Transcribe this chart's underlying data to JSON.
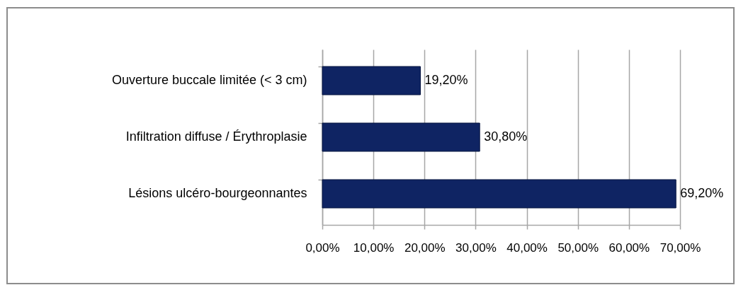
{
  "chart_data": {
    "type": "bar",
    "orientation": "horizontal",
    "categories": [
      "Ouverture buccale limitée (< 3 cm)",
      "Infiltration diffuse / Érythroplasie",
      "Lésions ulcéro-bourgeonnantes"
    ],
    "values": [
      19.2,
      30.8,
      69.2
    ],
    "color": "#0f2463",
    "value_labels": [
      "19,20%",
      "30,80%",
      "69,20%"
    ],
    "xlim": [
      0,
      70
    ],
    "xticks": [
      {
        "value": 0,
        "label": "0,00%"
      },
      {
        "value": 10,
        "label": "10,00%"
      },
      {
        "value": 20,
        "label": "20,00%"
      },
      {
        "value": 30,
        "label": "30,00%"
      },
      {
        "value": 40,
        "label": "40,00%"
      },
      {
        "value": 50,
        "label": "50,00%"
      },
      {
        "value": 60,
        "label": "60,00%"
      },
      {
        "value": 70,
        "label": "70,00%"
      }
    ],
    "grid": "x"
  }
}
